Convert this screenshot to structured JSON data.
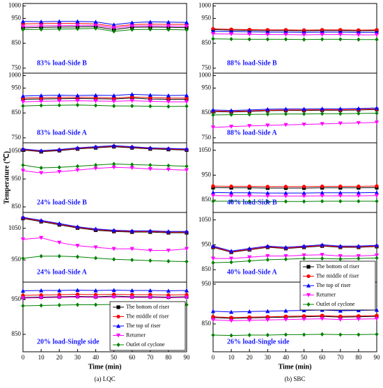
{
  "chart_data": [
    {
      "type": "line",
      "title": "83% load-Side B",
      "x": [
        0,
        10,
        20,
        30,
        40,
        50,
        60,
        70,
        80,
        90
      ],
      "ylim": [
        730,
        1010
      ],
      "yticks": [
        750,
        850,
        950,
        1000
      ],
      "series": [
        {
          "color": "#000000",
          "marker": "square",
          "values": [
            912,
            914,
            915,
            916,
            917,
            905,
            914,
            915,
            914,
            913
          ]
        },
        {
          "color": "#ff0000",
          "marker": "circle",
          "values": [
            928,
            929,
            930,
            930,
            928,
            918,
            925,
            927,
            926,
            926
          ]
        },
        {
          "color": "#0000ff",
          "marker": "triangle-up",
          "values": [
            938,
            937,
            938,
            938,
            936,
            925,
            933,
            936,
            935,
            934
          ]
        },
        {
          "color": "#ff00ff",
          "marker": "triangle-down",
          "values": [
            918,
            920,
            921,
            922,
            922,
            912,
            919,
            920,
            919,
            918
          ]
        },
        {
          "color": "#008000",
          "marker": "diamond",
          "values": [
            905,
            906,
            907,
            908,
            910,
            898,
            905,
            906,
            905,
            904
          ]
        }
      ]
    },
    {
      "type": "line",
      "title": "83% load-Side A",
      "x": [
        0,
        10,
        20,
        30,
        40,
        50,
        60,
        70,
        80,
        90
      ],
      "ylim": [
        730,
        1010
      ],
      "yticks": [
        750,
        850,
        950,
        1000
      ],
      "series": [
        {
          "color": "#000000",
          "marker": "square",
          "values": [
            905,
            906,
            907,
            908,
            907,
            906,
            910,
            906,
            905,
            905
          ]
        },
        {
          "color": "#ff0000",
          "marker": "circle",
          "values": [
            910,
            911,
            912,
            913,
            912,
            910,
            914,
            912,
            910,
            910
          ]
        },
        {
          "color": "#0000ff",
          "marker": "triangle-up",
          "values": [
            918,
            920,
            921,
            920,
            921,
            920,
            925,
            922,
            920,
            921
          ]
        },
        {
          "color": "#ff00ff",
          "marker": "triangle-down",
          "values": [
            895,
            897,
            898,
            899,
            898,
            897,
            899,
            897,
            895,
            895
          ]
        },
        {
          "color": "#008000",
          "marker": "diamond",
          "values": [
            878,
            880,
            881,
            882,
            880,
            878,
            878,
            877,
            876,
            877
          ]
        }
      ]
    },
    {
      "type": "line",
      "title": "24% load-Side B",
      "y_label": "Temperature (℃)",
      "x": [
        0,
        10,
        20,
        30,
        40,
        50,
        60,
        70,
        80,
        90
      ],
      "ylim": [
        830,
        1080
      ],
      "yticks": [
        850,
        950,
        1050
      ],
      "series": [
        {
          "color": "#000000",
          "marker": "square",
          "values": [
            1054,
            1048,
            1052,
            1058,
            1062,
            1066,
            1062,
            1058,
            1056,
            1054
          ]
        },
        {
          "color": "#ff0000",
          "marker": "circle",
          "values": [
            1056,
            1050,
            1054,
            1060,
            1064,
            1068,
            1064,
            1060,
            1058,
            1056
          ]
        },
        {
          "color": "#0000ff",
          "marker": "triangle-up",
          "values": [
            1058,
            1052,
            1056,
            1062,
            1066,
            1070,
            1066,
            1062,
            1060,
            1058
          ]
        },
        {
          "color": "#ff00ff",
          "marker": "triangle-down",
          "values": [
            980,
            972,
            976,
            982,
            988,
            992,
            990,
            986,
            984,
            982
          ]
        },
        {
          "color": "#008000",
          "marker": "diamond",
          "values": [
            1000,
            990,
            992,
            996,
            1000,
            1004,
            1002,
            1000,
            998,
            996
          ]
        }
      ]
    },
    {
      "type": "line",
      "title": "24% load-Side A",
      "x": [
        0,
        10,
        20,
        30,
        40,
        50,
        60,
        70,
        80,
        90
      ],
      "ylim": [
        880,
        1100
      ],
      "yticks": [
        950,
        1050
      ],
      "series": [
        {
          "color": "#000000",
          "marker": "square",
          "values": [
            1081,
            1071,
            1061,
            1051,
            1044,
            1040,
            1038,
            1038,
            1036,
            1036
          ]
        },
        {
          "color": "#ff0000",
          "marker": "circle",
          "values": [
            1083,
            1073,
            1063,
            1053,
            1046,
            1042,
            1040,
            1040,
            1038,
            1038
          ]
        },
        {
          "color": "#0000ff",
          "marker": "triangle-up",
          "values": [
            1085,
            1075,
            1065,
            1055,
            1048,
            1044,
            1042,
            1042,
            1040,
            1040
          ]
        },
        {
          "color": "#ff00ff",
          "marker": "triangle-down",
          "values": [
            1015,
            1020,
            1005,
            995,
            990,
            985,
            985,
            980,
            980,
            985
          ]
        },
        {
          "color": "#008000",
          "marker": "diamond",
          "values": [
            955,
            962,
            962,
            960,
            956,
            952,
            950,
            948,
            946,
            945
          ]
        }
      ]
    },
    {
      "type": "line",
      "title": "20% load-Single side",
      "x_label": "Time (min)",
      "caption": "(a) LQC",
      "legend": "lower right",
      "x": [
        0,
        10,
        20,
        30,
        40,
        50,
        60,
        70,
        80,
        90
      ],
      "xlim": [
        0,
        90
      ],
      "xticks": [
        0,
        10,
        20,
        30,
        40,
        50,
        60,
        70,
        80,
        90
      ],
      "ylim": [
        800,
        1000
      ],
      "yticks": [
        850,
        950
      ],
      "series": [
        {
          "name": "The bottom of riser",
          "color": "#000000",
          "marker": "square",
          "values": [
            956,
            957,
            958,
            959,
            958,
            960,
            958,
            958,
            957,
            958
          ]
        },
        {
          "name": "The middle of  riser",
          "color": "#ff0000",
          "marker": "circle",
          "values": [
            962,
            963,
            964,
            965,
            964,
            965,
            964,
            964,
            963,
            964
          ]
        },
        {
          "name": "The top of riser",
          "color": "#0000ff",
          "marker": "triangle-up",
          "values": [
            975,
            976,
            976,
            977,
            976,
            977,
            976,
            976,
            975,
            976
          ]
        },
        {
          "name": "Returner",
          "color": "#ff00ff",
          "marker": "triangle-down",
          "values": [
            954,
            955,
            956,
            957,
            956,
            957,
            956,
            956,
            955,
            956
          ]
        },
        {
          "name": "Outlet of cyclone",
          "color": "#008000",
          "marker": "diamond",
          "values": [
            932,
            933,
            934,
            935,
            935,
            936,
            935,
            935,
            934,
            935
          ]
        }
      ]
    },
    {
      "type": "line",
      "title": "88% load-Side B",
      "x": [
        0,
        10,
        20,
        30,
        40,
        50,
        60,
        70,
        80,
        90
      ],
      "ylim": [
        730,
        1010
      ],
      "yticks": [
        750,
        850,
        950,
        1000
      ],
      "series": [
        {
          "color": "#000000",
          "marker": "square",
          "values": [
            905,
            903,
            902,
            901,
            901,
            900,
            901,
            901,
            900,
            901
          ]
        },
        {
          "color": "#ff0000",
          "marker": "circle",
          "values": [
            908,
            906,
            905,
            904,
            904,
            903,
            904,
            904,
            903,
            904
          ]
        },
        {
          "color": "#0000ff",
          "marker": "triangle-up",
          "values": [
            898,
            897,
            896,
            895,
            895,
            894,
            895,
            895,
            894,
            894
          ]
        },
        {
          "color": "#ff00ff",
          "marker": "triangle-down",
          "values": [
            888,
            887,
            886,
            885,
            885,
            884,
            885,
            885,
            884,
            884
          ]
        },
        {
          "color": "#008000",
          "marker": "diamond",
          "values": [
            868,
            867,
            866,
            866,
            866,
            865,
            866,
            866,
            865,
            865
          ]
        }
      ]
    },
    {
      "type": "line",
      "title": "88% load-Side A",
      "x": [
        0,
        10,
        20,
        30,
        40,
        50,
        60,
        70,
        80,
        90
      ],
      "ylim": [
        730,
        1010
      ],
      "yticks": [
        750,
        850,
        950,
        1000
      ],
      "series": [
        {
          "color": "#000000",
          "marker": "square",
          "values": [
            856,
            854,
            856,
            859,
            860,
            860,
            861,
            861,
            862,
            864
          ]
        },
        {
          "color": "#ff0000",
          "marker": "circle",
          "values": [
            858,
            856,
            858,
            861,
            862,
            862,
            863,
            863,
            864,
            866
          ]
        },
        {
          "color": "#0000ff",
          "marker": "triangle-up",
          "values": [
            862,
            860,
            862,
            865,
            866,
            866,
            867,
            867,
            868,
            870
          ]
        },
        {
          "color": "#ff00ff",
          "marker": "triangle-down",
          "values": [
            792,
            795,
            798,
            800,
            802,
            804,
            806,
            808,
            810,
            812
          ]
        },
        {
          "color": "#008000",
          "marker": "diamond",
          "values": [
            842,
            843,
            844,
            845,
            846,
            846,
            847,
            847,
            848,
            849
          ]
        }
      ]
    },
    {
      "type": "line",
      "title": "40% load-Side B",
      "x": [
        0,
        10,
        20,
        30,
        40,
        50,
        60,
        70,
        80,
        90
      ],
      "ylim": [
        800,
        1080
      ],
      "yticks": [
        850,
        950,
        1050
      ],
      "series": [
        {
          "color": "#000000",
          "marker": "square",
          "values": [
            900,
            899,
            899,
            898,
            898,
            898,
            899,
            899,
            899,
            900
          ]
        },
        {
          "color": "#ff0000",
          "marker": "circle",
          "values": [
            906,
            905,
            905,
            904,
            904,
            904,
            905,
            905,
            905,
            906
          ]
        },
        {
          "color": "#0000ff",
          "marker": "triangle-up",
          "values": [
            880,
            879,
            879,
            878,
            878,
            878,
            879,
            879,
            879,
            880
          ]
        },
        {
          "color": "#ff00ff",
          "marker": "triangle-down",
          "values": [
            868,
            867,
            867,
            866,
            866,
            866,
            867,
            867,
            867,
            868
          ]
        },
        {
          "color": "#008000",
          "marker": "diamond",
          "values": [
            845,
            845,
            844,
            844,
            844,
            844,
            845,
            845,
            845,
            845
          ]
        }
      ]
    },
    {
      "type": "line",
      "title": "40% load-Side A",
      "x": [
        0,
        10,
        20,
        30,
        40,
        50,
        60,
        70,
        80,
        90
      ],
      "ylim": [
        800,
        1080
      ],
      "yticks": [
        850,
        950,
        1050
      ],
      "series": [
        {
          "color": "#000000",
          "marker": "square",
          "values": [
            940,
            920,
            930,
            940,
            935,
            940,
            945,
            940,
            940,
            943
          ]
        },
        {
          "color": "#ff0000",
          "marker": "circle",
          "values": [
            942,
            922,
            932,
            942,
            937,
            942,
            947,
            942,
            942,
            945
          ]
        },
        {
          "color": "#0000ff",
          "marker": "triangle-up",
          "values": [
            945,
            925,
            935,
            945,
            940,
            945,
            950,
            945,
            945,
            948
          ]
        },
        {
          "color": "#ff00ff",
          "marker": "triangle-down",
          "values": [
            895,
            895,
            900,
            905,
            905,
            908,
            910,
            905,
            905,
            908
          ]
        },
        {
          "color": "#008000",
          "marker": "diamond",
          "values": [
            878,
            880,
            885,
            890,
            892,
            895,
            895,
            893,
            895,
            897
          ]
        }
      ]
    },
    {
      "type": "line",
      "title": "26% load-Single side",
      "x_label": "Time (min)",
      "caption": "(b) SBC",
      "legend": "upper right",
      "x": [
        0,
        10,
        20,
        30,
        40,
        50,
        60,
        70,
        80,
        90
      ],
      "xlim": [
        0,
        90
      ],
      "xticks": [
        0,
        10,
        20,
        30,
        40,
        50,
        60,
        70,
        80,
        90
      ],
      "ylim": [
        780,
        955
      ],
      "yticks": [
        850,
        950
      ],
      "series": [
        {
          "name": "The bottom of riser",
          "color": "#000000",
          "marker": "square",
          "values": [
            866,
            864,
            865,
            866,
            867,
            868,
            869,
            867,
            868,
            869
          ]
        },
        {
          "name": "The middle of  riser",
          "color": "#ff0000",
          "marker": "circle",
          "values": [
            868,
            866,
            867,
            868,
            869,
            870,
            871,
            869,
            870,
            871
          ]
        },
        {
          "name": "The top of riser",
          "color": "#0000ff",
          "marker": "triangle-up",
          "values": [
            882,
            880,
            881,
            882,
            883,
            884,
            885,
            883,
            884,
            885
          ]
        },
        {
          "name": "Returner",
          "color": "#ff00ff",
          "marker": "triangle-down",
          "values": [
            860,
            858,
            859,
            860,
            861,
            862,
            863,
            861,
            862,
            863
          ]
        },
        {
          "name": "Outlet of cyclone",
          "color": "#008000",
          "marker": "diamond",
          "values": [
            822,
            821,
            822,
            822,
            823,
            823,
            824,
            823,
            823,
            824
          ]
        }
      ]
    }
  ]
}
